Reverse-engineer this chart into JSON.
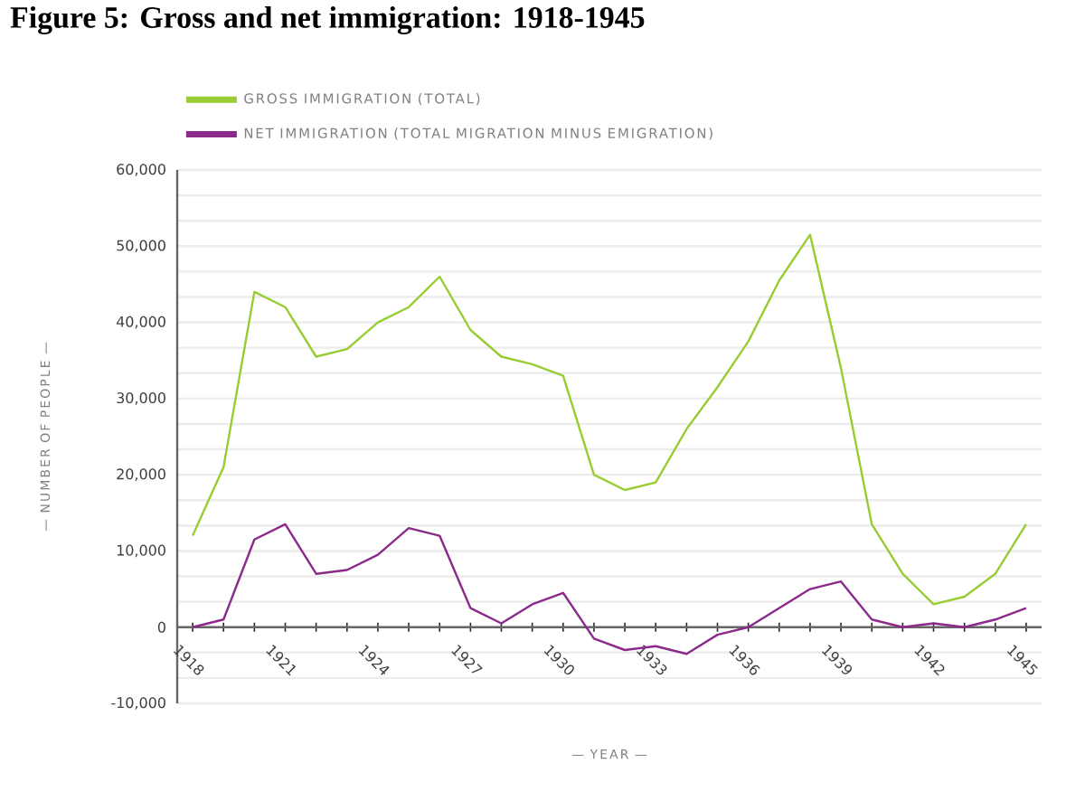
{
  "chart_data": {
    "type": "line",
    "title": "Figure 5: Gross and net immigration: 1918-1945",
    "xlabel": "— YEAR —",
    "ylabel": "— NUMBER OF PEOPLE —",
    "x": [
      1918,
      1919,
      1920,
      1921,
      1922,
      1923,
      1924,
      1925,
      1926,
      1927,
      1928,
      1929,
      1930,
      1931,
      1932,
      1933,
      1934,
      1935,
      1936,
      1937,
      1938,
      1939,
      1940,
      1941,
      1942,
      1943,
      1944,
      1945
    ],
    "series": [
      {
        "name": "GROSS IMMIGRATION (TOTAL)",
        "color": "#99cc33",
        "values": [
          12000,
          21000,
          44000,
          42000,
          35500,
          36500,
          40000,
          42000,
          46000,
          39000,
          35500,
          34500,
          33000,
          20000,
          18000,
          19000,
          26000,
          31500,
          37500,
          45500,
          51500,
          34000,
          13500,
          7000,
          3000,
          4000,
          7000,
          13500
        ]
      },
      {
        "name": "NET IMMIGRATION (TOTAL MIGRATION MINUS EMIGRATION)",
        "color": "#8b2a8b",
        "values": [
          0,
          1000,
          11500,
          13500,
          7000,
          7500,
          9500,
          13000,
          12000,
          2500,
          500,
          3000,
          4500,
          -1500,
          -3000,
          -2500,
          -3500,
          -1000,
          0,
          2500,
          5000,
          6000,
          1000,
          0,
          500,
          0,
          1000,
          2500
        ]
      }
    ],
    "xlim": [
      1917.5,
      1945.5
    ],
    "ylim": [
      -10000,
      60000
    ],
    "xticks": [
      1918,
      {
        "value": 1919,
        "label": null
      },
      {
        "value": 1920,
        "label": null
      },
      1921,
      {
        "value": 1922,
        "label": null
      },
      {
        "value": 1923,
        "label": null
      },
      1924,
      {
        "value": 1925,
        "label": null
      },
      {
        "value": 1926,
        "label": null
      },
      1927,
      {
        "value": 1928,
        "label": null
      },
      {
        "value": 1929,
        "label": null
      },
      1930,
      {
        "value": 1931,
        "label": null
      },
      {
        "value": 1932,
        "label": null
      },
      1933,
      {
        "value": 1934,
        "label": null
      },
      {
        "value": 1935,
        "label": null
      },
      1936,
      {
        "value": 1937,
        "label": null
      },
      {
        "value": 1938,
        "label": null
      },
      1939,
      {
        "value": 1940,
        "label": null
      },
      {
        "value": 1941,
        "label": null
      },
      1942,
      {
        "value": 1943,
        "label": null
      },
      {
        "value": 1944,
        "label": null
      },
      1945
    ],
    "yticks": [
      {
        "value": -10000,
        "label": "-10,000"
      },
      {
        "value": 0,
        "label": "0"
      },
      {
        "value": 10000,
        "label": "10,000"
      },
      {
        "value": 20000,
        "label": "20,000"
      },
      {
        "value": 30000,
        "label": "30,000"
      },
      {
        "value": 40000,
        "label": "40,000"
      },
      {
        "value": 50000,
        "label": "50,000"
      },
      {
        "value": 60000,
        "label": "60,000"
      }
    ],
    "grid": "y",
    "legend": "top left",
    "marker": "none",
    "line_style": "solid"
  }
}
